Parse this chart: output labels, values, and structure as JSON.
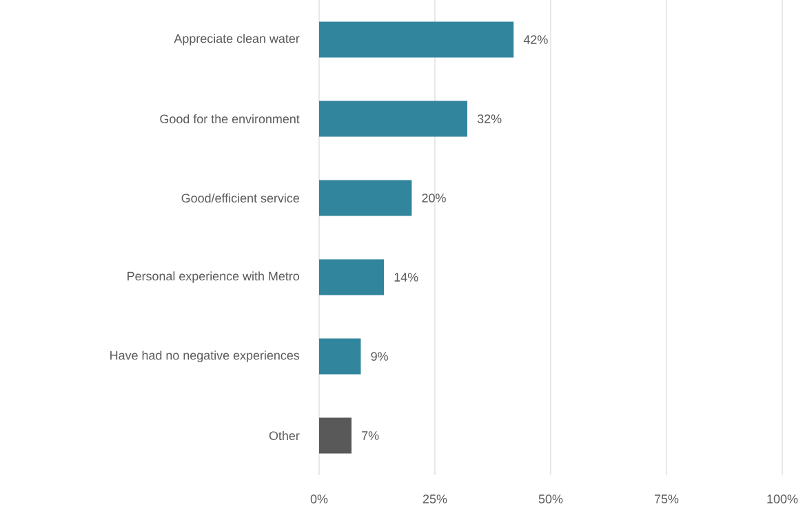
{
  "chart_data": {
    "type": "bar",
    "orientation": "horizontal",
    "categories": [
      "Appreciate clean water",
      "Good for the environment",
      "Good/efficient service",
      "Personal experience with Metro",
      "Have had no negative experiences",
      "Other"
    ],
    "values": [
      42,
      32,
      20,
      14,
      9,
      7
    ],
    "colors": [
      "#31859c",
      "#31859c",
      "#31859c",
      "#31859c",
      "#31859c",
      "#595959"
    ],
    "value_labels": [
      "42%",
      "32%",
      "20%",
      "14%",
      "9%",
      "7%"
    ],
    "xlim": [
      0,
      100
    ],
    "xticks": [
      {
        "value": 0,
        "label": "0%"
      },
      {
        "value": 25,
        "label": "25%"
      },
      {
        "value": 50,
        "label": "50%"
      },
      {
        "value": 75,
        "label": "75%"
      },
      {
        "value": 100,
        "label": "100%"
      }
    ],
    "grid": "x"
  }
}
